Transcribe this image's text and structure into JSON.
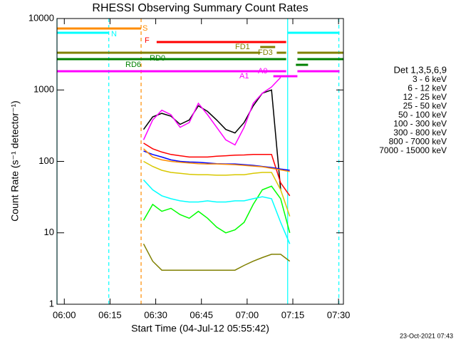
{
  "chart_data": {
    "type": "line",
    "title": "RHESSI Observing Summary Count Rates",
    "xlabel": "Start Time (04-Jul-12 05:55:42)",
    "ylabel": "Count Rate (s⁻¹ detector⁻¹)",
    "legend_title": "Det 1,3,5,6,9",
    "footer": "23-Oct-2021 07:43",
    "log_y": true,
    "xlim": [
      357.6,
      451.6
    ],
    "xticks": [
      {
        "value": 360,
        "label": "06:00"
      },
      {
        "value": 375,
        "label": "06:15"
      },
      {
        "value": 390,
        "label": "06:30"
      },
      {
        "value": 405,
        "label": "06:45"
      },
      {
        "value": 420,
        "label": "07:00"
      },
      {
        "value": 435,
        "label": "07:15"
      },
      {
        "value": 450,
        "label": "07:30"
      }
    ],
    "ylim": [
      1,
      10000
    ],
    "yticks": [
      1,
      10,
      100,
      1000,
      10000
    ],
    "x": [
      386,
      389,
      392,
      395,
      398,
      401,
      404,
      407,
      410,
      413,
      416,
      419,
      422,
      425,
      428,
      431,
      434
    ],
    "series": [
      {
        "name": "3 - 6 keV",
        "color": "#000000",
        "values": [
          280,
          420,
          470,
          430,
          330,
          380,
          600,
          500,
          380,
          280,
          250,
          350,
          600,
          900,
          1000,
          40,
          null
        ]
      },
      {
        "name": "6 - 12 keV",
        "color": "#ff00ff",
        "values": [
          200,
          380,
          520,
          450,
          300,
          350,
          650,
          450,
          300,
          200,
          170,
          300,
          650,
          900,
          1100,
          1500,
          null
        ]
      },
      {
        "name": "12 - 25 keV",
        "color": "#00ff00",
        "values": [
          15,
          25,
          20,
          22,
          18,
          16,
          20,
          16,
          12,
          10,
          11,
          14,
          25,
          40,
          45,
          30,
          10
        ]
      },
      {
        "name": "25 - 50 keV",
        "color": "#00ffff",
        "values": [
          55,
          40,
          33,
          30,
          28,
          27,
          27,
          28,
          27,
          27,
          28,
          28,
          30,
          32,
          30,
          14,
          7
        ]
      },
      {
        "name": "50 - 100 keV",
        "color": "#d8c800",
        "values": [
          100,
          85,
          75,
          70,
          68,
          66,
          65,
          65,
          64,
          64,
          65,
          65,
          68,
          70,
          70,
          40,
          17
        ]
      },
      {
        "name": "100 - 300 keV",
        "color": "#ff0000",
        "values": [
          180,
          150,
          135,
          125,
          120,
          115,
          115,
          115,
          118,
          120,
          122,
          123,
          125,
          125,
          125,
          50,
          33
        ]
      },
      {
        "name": "300 - 800 keV",
        "color": "#0000ff",
        "values": [
          140,
          125,
          115,
          105,
          100,
          98,
          97,
          95,
          93,
          92,
          92,
          90,
          88,
          85,
          82,
          78,
          75
        ]
      },
      {
        "name": "800 - 7000 keV",
        "color": "#ff8c00",
        "values": [
          150,
          115,
          105,
          100,
          97,
          95,
          93,
          92,
          92,
          91,
          90,
          88,
          86,
          84,
          80,
          76,
          72
        ]
      },
      {
        "name": "7000 - 15000 keV",
        "color": "#808000",
        "values": [
          7,
          4,
          3,
          3,
          3,
          3,
          3,
          3,
          3,
          3,
          3,
          3.5,
          4,
          4.5,
          5,
          5,
          4
        ]
      }
    ],
    "flags": [
      {
        "label": "S",
        "color": "#ff8c00",
        "segments": [
          [
            357.6,
            385.2
          ]
        ]
      },
      {
        "label": "N",
        "color": "#00ffff",
        "segments": [
          [
            357.6,
            374.6
          ],
          [
            433.3,
            450.3
          ]
        ]
      },
      {
        "label": "F",
        "color": "#ff0000",
        "segments": [
          [
            390.3,
            432.8
          ]
        ]
      },
      {
        "label": "FD1",
        "color": "#808000",
        "segments": [
          [
            424.3,
            429.2
          ]
        ]
      },
      {
        "label": "FD3",
        "color": "#808000",
        "segments": [
          [
            357.6,
            424.3
          ],
          [
            429.7,
            432.8
          ],
          [
            436.5,
            451.6
          ]
        ]
      },
      {
        "label": "RD0",
        "color": "#008000",
        "segments": [
          [
            357.6,
            432.8
          ],
          [
            436.5,
            451.6
          ]
        ]
      },
      {
        "label": "RD6",
        "color": "#008000",
        "segments": [
          [
            436.0,
            440.0
          ]
        ]
      },
      {
        "label": "A1",
        "color": "#ff00ff",
        "segments": [
          [
            357.6,
            432.8
          ],
          [
            436.5,
            450.3
          ]
        ]
      },
      {
        "label": "A0",
        "color": "#ff00ff",
        "segments": [
          [
            428.6,
            436.5
          ]
        ]
      }
    ],
    "vlines": [
      {
        "x": 357.6,
        "color": "#00ffff",
        "dashed": false
      },
      {
        "x": 374.6,
        "color": "#00ffff",
        "dashed": true
      },
      {
        "x": 385.2,
        "color": "#ff8c00",
        "dashed": true
      },
      {
        "x": 433.3,
        "color": "#00ffff",
        "dashed": false
      },
      {
        "x": 450.1,
        "color": "#00ffff",
        "dashed": true
      }
    ]
  }
}
